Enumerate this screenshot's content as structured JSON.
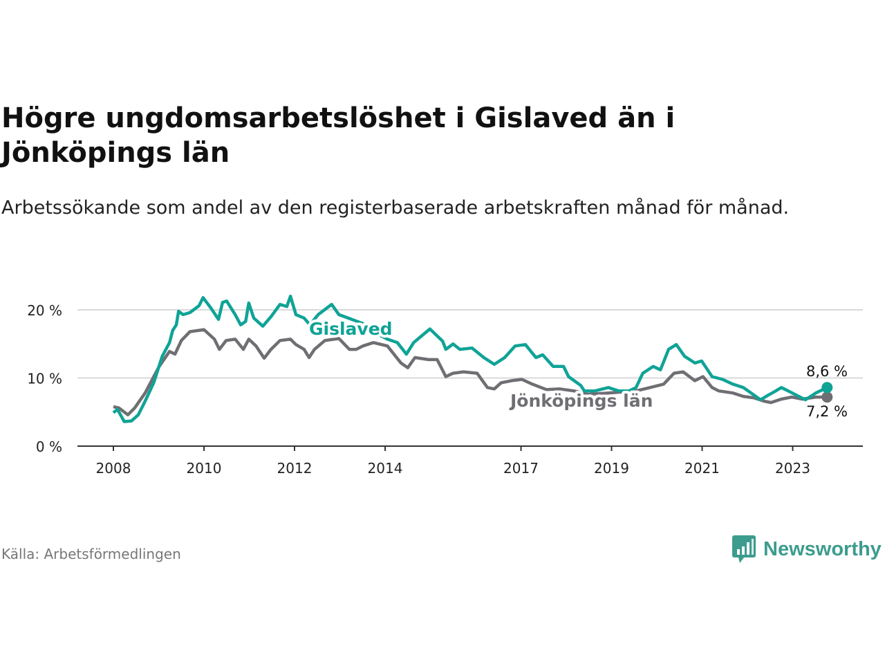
{
  "title": "Högre ungdomsarbetslöshet i Gislaved än i Jönköpings län",
  "subtitle": "Arbetssökande som andel av den registerbaserade arbetskraften månad för månad.",
  "source": "Källa: Arbetsförmedlingen",
  "logo": "Newsworthy",
  "colors": {
    "gislaved": "#0fa396",
    "jonkoping": "#6f6e73",
    "logo": "#3c9c8e"
  },
  "chart_data": {
    "type": "line",
    "title": "Högre ungdomsarbetslöshet i Gislaved än i Jönköpings län",
    "xlabel": "",
    "ylabel": "",
    "xlim": [
      2008,
      2024.3
    ],
    "ylim": [
      0,
      22
    ],
    "yticks": [
      0,
      10,
      20
    ],
    "ytick_labels": [
      "0 %",
      "10 %",
      "20 %"
    ],
    "xticks": [
      2008,
      2010,
      2012,
      2014,
      2017,
      2019,
      2021,
      2023
    ],
    "xtick_labels": [
      "2008",
      "2010",
      "2012",
      "2014",
      "2017",
      "2019",
      "2021",
      "2023"
    ],
    "grid": true,
    "series": [
      {
        "name": "Gislaved",
        "end_label": "8,6 %",
        "x": [
          2008.0,
          2008.09,
          2008.24,
          2008.4,
          2008.55,
          2008.7,
          2008.89,
          2009.08,
          2009.24,
          2009.31,
          2009.39,
          2009.44,
          2009.54,
          2009.69,
          2009.89,
          2009.98,
          2010.15,
          2010.32,
          2010.41,
          2010.5,
          2010.69,
          2010.81,
          2010.92,
          2010.99,
          2011.1,
          2011.3,
          2011.48,
          2011.68,
          2011.83,
          2011.91,
          2012.03,
          2012.21,
          2012.34,
          2012.52,
          2012.82,
          2012.98,
          2013.51,
          2013.82,
          2014.05,
          2014.27,
          2014.47,
          2014.63,
          2014.81,
          2014.99,
          2015.27,
          2015.34,
          2015.5,
          2015.65,
          2015.92,
          2016.18,
          2016.41,
          2016.64,
          2016.87,
          2017.1,
          2017.33,
          2017.48,
          2017.71,
          2017.94,
          2018.05,
          2018.32,
          2018.4,
          2018.63,
          2018.93,
          2019.16,
          2019.39,
          2019.54,
          2019.69,
          2019.92,
          2020.08,
          2020.26,
          2020.43,
          2020.61,
          2020.84,
          2020.99,
          2021.22,
          2021.45,
          2021.68,
          2021.91,
          2022.06,
          2022.29,
          2022.44,
          2022.6,
          2022.75,
          2022.9,
          2023.28,
          2023.51,
          2023.76
        ],
        "y": [
          4.9,
          5.4,
          3.6,
          3.7,
          4.6,
          6.6,
          9.3,
          13.2,
          15.2,
          17.0,
          17.8,
          19.8,
          19.3,
          19.6,
          20.6,
          21.8,
          20.3,
          18.6,
          21.1,
          21.3,
          19.3,
          17.8,
          18.3,
          21.0,
          18.8,
          17.6,
          19.0,
          20.8,
          20.5,
          22.0,
          19.3,
          18.8,
          17.8,
          19.3,
          20.8,
          19.3,
          18.0,
          16.5,
          15.7,
          15.2,
          13.5,
          15.2,
          16.2,
          17.2,
          15.4,
          14.2,
          15.0,
          14.2,
          14.4,
          13.0,
          12.0,
          13.0,
          14.7,
          14.9,
          13.0,
          13.4,
          11.7,
          11.7,
          10.2,
          8.9,
          8.1,
          8.1,
          8.6,
          8.1,
          8.1,
          8.6,
          10.7,
          11.7,
          11.2,
          14.2,
          14.9,
          13.2,
          12.2,
          12.5,
          10.2,
          9.8,
          9.1,
          8.6,
          7.9,
          6.8,
          7.4,
          8.0,
          8.6,
          8.1,
          6.8,
          7.8,
          8.6
        ]
      },
      {
        "name": "Jönköpings län",
        "end_label": "7,2 %",
        "x": [
          2008.0,
          2008.12,
          2008.32,
          2008.47,
          2008.7,
          2009.01,
          2009.24,
          2009.36,
          2009.5,
          2009.69,
          2010.0,
          2010.23,
          2010.34,
          2010.49,
          2010.69,
          2010.87,
          2010.99,
          2011.15,
          2011.33,
          2011.48,
          2011.68,
          2011.91,
          2012.03,
          2012.21,
          2012.32,
          2012.44,
          2012.67,
          2012.98,
          2013.21,
          2013.36,
          2013.51,
          2013.74,
          2014.05,
          2014.35,
          2014.5,
          2014.66,
          2014.96,
          2015.15,
          2015.34,
          2015.5,
          2015.73,
          2016.03,
          2016.26,
          2016.41,
          2016.56,
          2016.79,
          2017.02,
          2017.25,
          2017.56,
          2017.86,
          2018.17,
          2018.47,
          2018.93,
          2019.54,
          2019.85,
          2020.15,
          2020.38,
          2020.58,
          2020.84,
          2021.02,
          2021.22,
          2021.37,
          2021.68,
          2021.91,
          2022.14,
          2022.37,
          2022.52,
          2022.75,
          2022.98,
          2023.21,
          2023.51,
          2023.76
        ],
        "y": [
          5.8,
          5.6,
          4.6,
          5.6,
          7.8,
          11.7,
          13.9,
          13.5,
          15.5,
          16.8,
          17.1,
          15.7,
          14.2,
          15.5,
          15.7,
          14.2,
          15.7,
          14.7,
          12.9,
          14.2,
          15.5,
          15.7,
          14.9,
          14.2,
          13.0,
          14.2,
          15.5,
          15.8,
          14.2,
          14.2,
          14.7,
          15.2,
          14.7,
          12.2,
          11.5,
          13.0,
          12.7,
          12.7,
          10.2,
          10.7,
          10.9,
          10.7,
          8.6,
          8.4,
          9.3,
          9.6,
          9.8,
          9.1,
          8.3,
          8.4,
          8.1,
          7.6,
          7.8,
          8.1,
          8.6,
          9.1,
          10.7,
          10.9,
          9.6,
          10.2,
          8.6,
          8.1,
          7.8,
          7.3,
          7.1,
          6.6,
          6.4,
          6.9,
          7.2,
          6.9,
          7.2,
          7.2
        ]
      }
    ]
  }
}
